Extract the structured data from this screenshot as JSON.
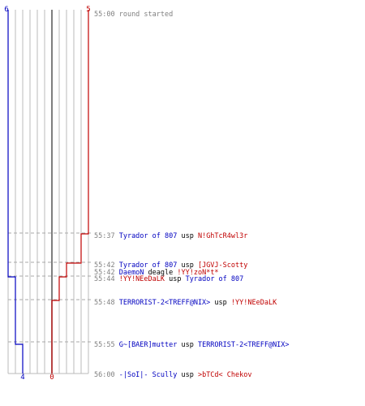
{
  "colors": {
    "team_a": "#0000c0",
    "team_b": "#c00000",
    "grid": "#bbbbbb",
    "center": "#555555",
    "guide": "#aaaaaa",
    "time": "#808080"
  },
  "scores": {
    "team_a_start": "6",
    "team_b_start": "5",
    "team_a_end": "4",
    "team_b_end": "0"
  },
  "events": [
    {
      "time": "55:00",
      "parts": [
        {
          "text": "round started",
          "team": "neutral"
        }
      ]
    },
    {
      "time": "55:37",
      "parts": [
        {
          "text": "Tyrador of 807",
          "team": "a"
        },
        {
          "text": " usp ",
          "team": "neutral"
        },
        {
          "text": "N!GhTcR4wl3r",
          "team": "b"
        }
      ]
    },
    {
      "time": "55:42",
      "parts": [
        {
          "text": "Tyrador of 807",
          "team": "a"
        },
        {
          "text": " usp ",
          "team": "neutral"
        },
        {
          "text": "[JGVJ-Scotty",
          "team": "b"
        }
      ]
    },
    {
      "time": "55:42",
      "parts": [
        {
          "text": "DaemoN",
          "team": "a"
        },
        {
          "text": " deagle ",
          "team": "neutral"
        },
        {
          "text": "!YY!zoN*t*",
          "team": "b"
        }
      ]
    },
    {
      "time": "55:44",
      "parts": [
        {
          "text": "!YY!NEeDaLK",
          "team": "b"
        },
        {
          "text": " usp ",
          "team": "neutral"
        },
        {
          "text": "Tyrador of 807",
          "team": "a"
        }
      ]
    },
    {
      "time": "55:48",
      "parts": [
        {
          "text": "TERRORIST-2<TREFF@NIX>",
          "team": "a"
        },
        {
          "text": " usp ",
          "team": "neutral"
        },
        {
          "text": "!YY!NEeDaLK",
          "team": "b"
        }
      ]
    },
    {
      "time": "55:55",
      "parts": [
        {
          "text": "G~[BAER]mutter",
          "team": "a"
        },
        {
          "text": " usp ",
          "team": "neutral"
        },
        {
          "text": "TERRORIST-2<TREFF@NIX>",
          "team": "a"
        }
      ]
    },
    {
      "time": "56:00",
      "parts": [
        {
          "text": "-|SoI|- Scully",
          "team": "a"
        },
        {
          "text": " usp ",
          "team": "neutral"
        },
        {
          "text": ">bTCd< Chekov",
          "team": "b"
        }
      ]
    }
  ]
}
